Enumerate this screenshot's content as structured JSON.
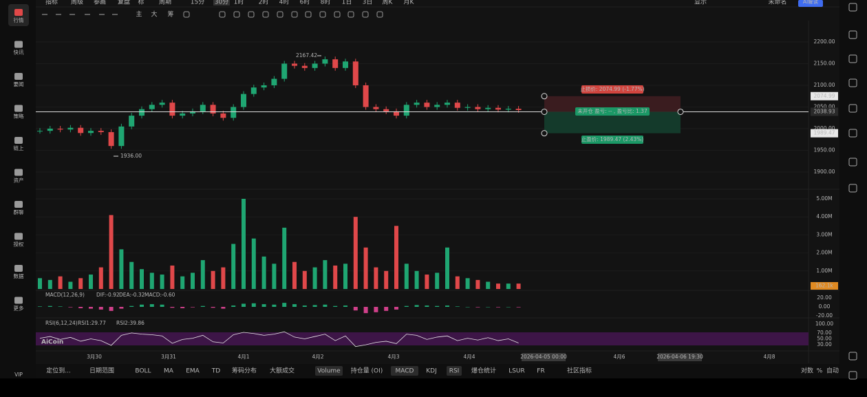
{
  "sidebar": {
    "items": [
      "行情",
      "快讯",
      "要闻",
      "策略",
      "链上",
      "资产",
      "群聊",
      "授权",
      "数据",
      "更多"
    ],
    "vip": "VIP"
  },
  "toolbar": {
    "top": [
      "指标",
      "周级",
      "参画",
      "复盘",
      "标",
      "周期",
      "15分",
      "30分",
      "1时",
      "2时",
      "4时",
      "6时",
      "8时",
      "1日",
      "3日",
      "周K",
      "月K"
    ],
    "right": [
      "显示",
      "未命名",
      "AI解读"
    ],
    "main": [
      "主",
      "大",
      "筹"
    ]
  },
  "price_chart": {
    "yticks": [
      {
        "value": 2200,
        "label": "2200.00"
      },
      {
        "value": 2150,
        "label": "2150.00"
      },
      {
        "value": 2100,
        "label": "2100.00"
      },
      {
        "value": 2050,
        "label": "2050.00"
      },
      {
        "value": 2000,
        "label": "2000.00"
      },
      {
        "value": 1950,
        "label": "1950.00"
      },
      {
        "value": 1900,
        "label": "1900.00"
      }
    ],
    "closes": [
      1995,
      2000,
      1998,
      2002,
      1990,
      1995,
      1992,
      1960,
      2005,
      2030,
      2045,
      2055,
      2060,
      2030,
      2035,
      2040,
      2055,
      2035,
      2025,
      2050,
      2080,
      2095,
      2100,
      2115,
      2150,
      2145,
      2140,
      2150,
      2160,
      2140,
      2155,
      2100,
      2050,
      2045,
      2040,
      2030,
      2055,
      2060,
      2050,
      2055,
      2060,
      2048,
      2050,
      2045,
      2048,
      2044,
      2046,
      2043
    ],
    "high_label": "2167.42",
    "low_label": "1936.00"
  },
  "position": {
    "stop_loss": "止损价: 2074.99 (-1.77%)",
    "status": "未开仓 盈亏: -- , 盈亏比: 1.37",
    "take_profit": "止盈价: 1989.47 (2.43%)",
    "levels": [
      {
        "value": 2074.99,
        "label": "2074.99"
      },
      {
        "value": 2038.93,
        "label": "2038.93"
      },
      {
        "value": 1989.47,
        "label": "1989.47"
      }
    ]
  },
  "volume": {
    "yticks": [
      {
        "value": 5,
        "label": "5.00M"
      },
      {
        "value": 4,
        "label": "4.00M"
      },
      {
        "value": 3,
        "label": "3.00M"
      },
      {
        "value": 2,
        "label": "2.00M"
      },
      {
        "value": 1,
        "label": "1.00M"
      }
    ],
    "values": [
      0.6,
      0.5,
      0.7,
      0.4,
      0.6,
      0.8,
      1.2,
      4.1,
      2.2,
      1.5,
      1.1,
      0.9,
      0.8,
      1.3,
      0.7,
      0.9,
      1.6,
      1.0,
      1.2,
      2.5,
      5.0,
      2.8,
      1.8,
      1.4,
      3.4,
      1.5,
      1.0,
      1.2,
      1.6,
      1.3,
      1.4,
      4.0,
      2.3,
      1.2,
      1.0,
      3.5,
      1.4,
      1.0,
      0.8,
      0.9,
      2.3,
      0.7,
      0.6,
      0.5,
      0.4,
      0.3,
      0.3,
      0.3
    ],
    "tag": "162.1k"
  },
  "macd": {
    "legend": "MACD(12,26,9)",
    "dif": "DIF:-0.92",
    "dea": "DEA:-0.32",
    "macd": "MACD:-0.60",
    "yticks": [
      {
        "value": 20,
        "label": "20.00"
      },
      {
        "value": 0,
        "label": "0.00"
      },
      {
        "value": -20,
        "label": "-20.00"
      }
    ],
    "hist": [
      1,
      2,
      1,
      -1,
      -3,
      -4,
      -6,
      -9,
      -4,
      2,
      5,
      6,
      5,
      -2,
      -3,
      -1,
      2,
      -2,
      -4,
      3,
      7,
      8,
      6,
      5,
      9,
      6,
      3,
      4,
      5,
      2,
      3,
      -8,
      -14,
      -12,
      -9,
      -6,
      2,
      4,
      3,
      2,
      3,
      1,
      0,
      -1,
      0,
      -1,
      0,
      -1
    ]
  },
  "rsi": {
    "legend": "RSI(6,12,24)",
    "rsi1": "RSI1:29.77",
    "rsi2": "RSI2:39.86",
    "yticks": [
      {
        "value": 100,
        "label": "100.00"
      },
      {
        "value": 70,
        "label": "70.00"
      },
      {
        "value": 50,
        "label": "50.00"
      },
      {
        "value": 30,
        "label": "30.00"
      }
    ],
    "values": [
      52,
      58,
      48,
      55,
      42,
      50,
      44,
      28,
      62,
      70,
      66,
      64,
      60,
      35,
      48,
      52,
      62,
      40,
      36,
      64,
      72,
      68,
      62,
      66,
      74,
      56,
      50,
      58,
      66,
      44,
      60,
      24,
      30,
      38,
      42,
      34,
      66,
      62,
      48,
      56,
      60,
      44,
      52,
      46,
      54,
      44,
      50,
      36
    ]
  },
  "time_axis": {
    "labels": [
      "3月30",
      "3月31",
      "4月1",
      "4月2",
      "4月3",
      "4月4",
      "4月6",
      "4月8"
    ],
    "crosshair": [
      "2026-04-05 00:00",
      "2026-04-06 19:30"
    ]
  },
  "bottom_bar": {
    "left": [
      "定位到...",
      "日期范围"
    ],
    "indicators": [
      "BOLL",
      "MA",
      "EMA",
      "TD",
      "筹码分布",
      "大额成交"
    ],
    "sub": [
      "Volume",
      "持仓量 (OI)",
      "MACD",
      "KDJ",
      "RSI",
      "爆仓统计",
      "LSUR",
      "FR",
      "社区指标"
    ],
    "right": [
      "对数",
      "%",
      "自动"
    ]
  },
  "logo": "AiCoin"
}
